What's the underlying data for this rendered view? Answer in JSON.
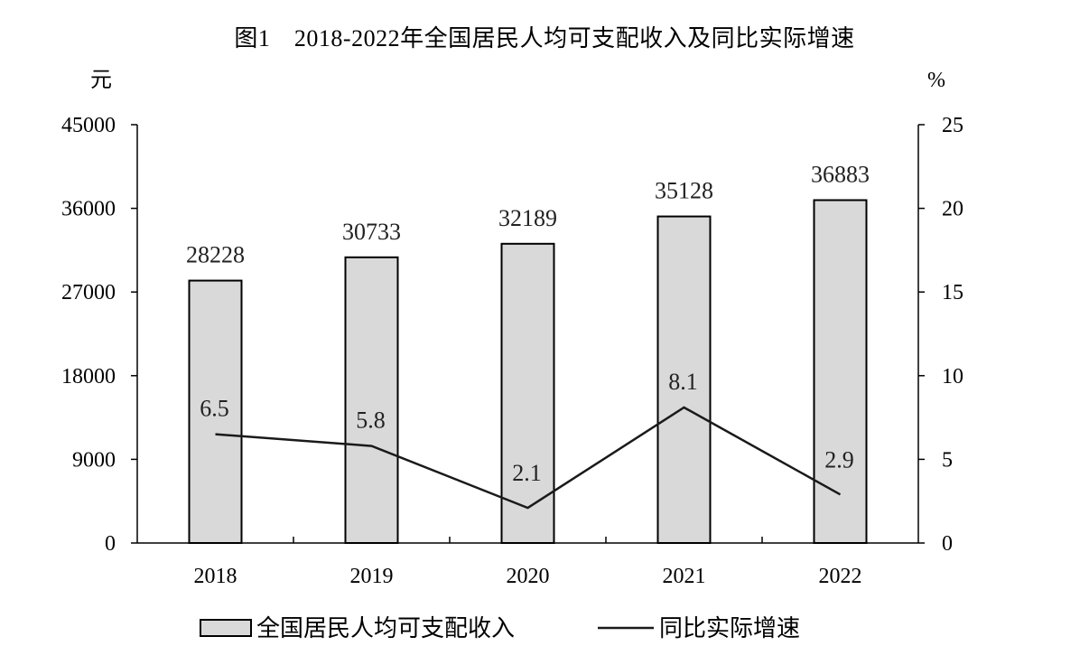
{
  "chart_data": {
    "type": "bar",
    "title": "图1　2018-2022年全国居民人均可支配收入及同比实际增速",
    "categories": [
      "2018",
      "2019",
      "2020",
      "2021",
      "2022"
    ],
    "left_axis": {
      "unit": "元",
      "ylim": [
        0,
        45000
      ],
      "ticks": [
        0,
        9000,
        18000,
        27000,
        36000,
        45000
      ]
    },
    "right_axis": {
      "unit": "%",
      "ylim": [
        0,
        25
      ],
      "ticks": [
        0,
        5,
        10,
        15,
        20,
        25
      ]
    },
    "series": [
      {
        "name": "全国居民人均可支配收入",
        "type": "bar",
        "axis": "left",
        "values": [
          28228,
          30733,
          32189,
          35128,
          36883
        ],
        "color": "#d9d9d9"
      },
      {
        "name": "同比实际增速",
        "type": "line",
        "axis": "right",
        "values": [
          6.5,
          5.8,
          2.1,
          8.1,
          2.9
        ],
        "labels": [
          "6.5",
          "5.8",
          "2.1",
          "8.1",
          "2.9"
        ],
        "color": "#1a1a1a"
      }
    ],
    "grid": false,
    "legend": "bottom"
  }
}
